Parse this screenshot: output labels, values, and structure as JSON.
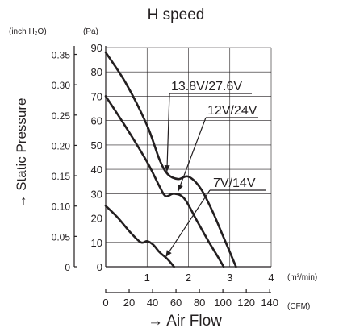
{
  "chart_data": {
    "type": "line",
    "title": "H speed",
    "y_unit_left": "(inch H₂O)",
    "y_unit_right": "(Pa)",
    "ylabel": "→ Static Pressure",
    "xlabel": "→ Air Flow",
    "x_unit_primary": "(m³/min)",
    "x_unit_secondary": "(CFM)",
    "xlim": [
      0,
      4
    ],
    "ylim": [
      0,
      90
    ],
    "grid": true,
    "x_ticks_m3min": [
      "1",
      "2",
      "3",
      "4"
    ],
    "x_ticks_cfm": [
      "0",
      "20",
      "40",
      "60",
      "80",
      "100",
      "120",
      "140"
    ],
    "y_ticks_pa": [
      "0",
      "10",
      "20",
      "30",
      "40",
      "50",
      "60",
      "70",
      "80",
      "90"
    ],
    "y_ticks_inch": [
      "0",
      "0.05",
      "0.10",
      "0.15",
      "0.20",
      "0.25",
      "0.30",
      "0.35"
    ],
    "series": [
      {
        "name": "13.8V/27.6V",
        "x": [
          0,
          0.5,
          1.0,
          1.3,
          1.5,
          1.75,
          2.0,
          2.3,
          2.6,
          2.85,
          3.0,
          3.15
        ],
        "y": [
          88,
          75,
          58,
          44,
          38,
          36,
          37,
          32,
          22,
          12,
          6,
          0
        ]
      },
      {
        "name": "12V/24V",
        "x": [
          0,
          0.5,
          1.0,
          1.3,
          1.45,
          1.65,
          1.9,
          2.2,
          2.5,
          2.75,
          2.85
        ],
        "y": [
          70,
          57,
          43,
          33,
          29,
          30,
          28,
          19,
          10,
          3,
          0
        ]
      },
      {
        "name": "7V/14V",
        "x": [
          0,
          0.3,
          0.6,
          0.85,
          1.0,
          1.15,
          1.3,
          1.5,
          1.65
        ],
        "y": [
          25,
          20,
          14,
          10,
          10.5,
          9,
          6,
          3,
          0
        ]
      }
    ]
  }
}
